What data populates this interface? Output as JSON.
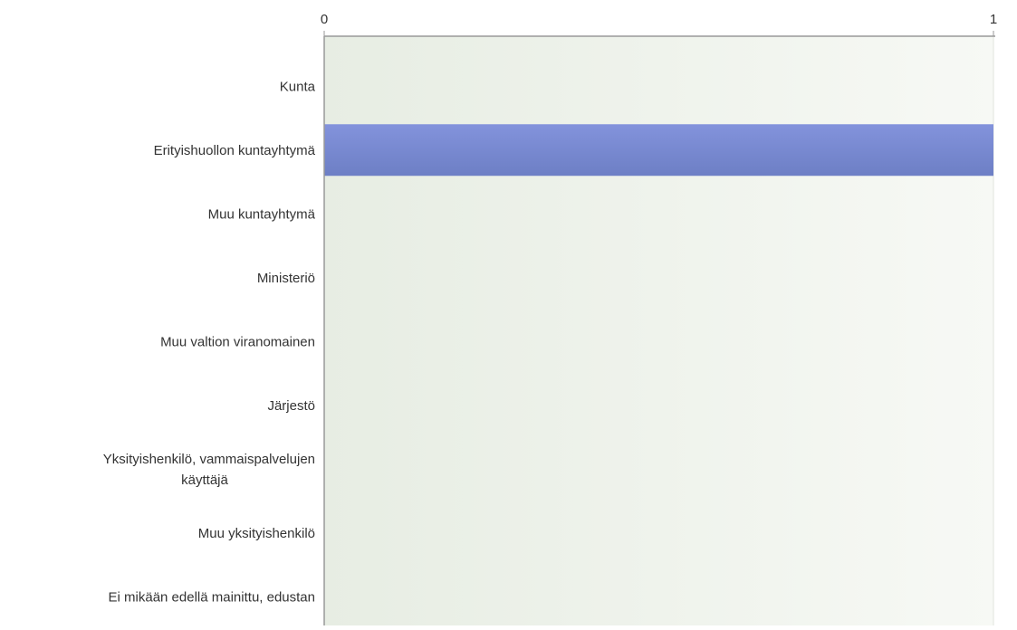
{
  "chart_data": {
    "type": "bar",
    "orientation": "horizontal",
    "categories": [
      "Kunta",
      "Erityishuollon kuntayhtymä",
      "Muu kuntayhtymä",
      "Ministeriö",
      "Muu valtion viranomainen",
      "Järjestö",
      "Yksityishenkilö, vammaispalvelujen käyttäjä",
      "Muu yksityishenkilö",
      "Ei mikään edellä mainittu, edustan"
    ],
    "category_lines": [
      [
        "Kunta"
      ],
      [
        "Erityishuollon kuntayhtymä"
      ],
      [
        "Muu kuntayhtymä"
      ],
      [
        "Ministeriö"
      ],
      [
        "Muu valtion viranomainen"
      ],
      [
        "Järjestö"
      ],
      [
        "Yksityishenkilö, vammaispalvelujen",
        "käyttäjä"
      ],
      [
        "Muu yksityishenkilö"
      ],
      [
        "Ei mikään edellä mainittu, edustan"
      ]
    ],
    "values": [
      0,
      1,
      0,
      0,
      0,
      0,
      0,
      0,
      0
    ],
    "xlim": [
      0,
      1
    ],
    "x_ticks": [
      "0",
      "1"
    ],
    "grid": true,
    "legend": "none",
    "colors": {
      "bar_top": "#8393dc",
      "bar_bottom": "#6d7fc5",
      "plot_bg_left": "#e7ede3",
      "plot_bg_right": "#f7f9f5",
      "axis": "#999999",
      "grid": "#e0e4de"
    }
  }
}
